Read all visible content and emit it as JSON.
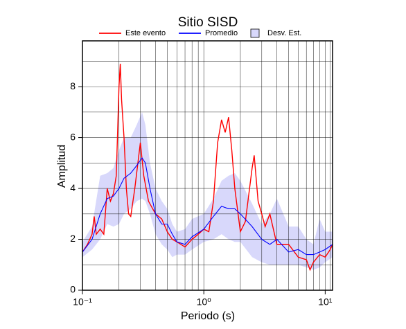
{
  "chart_data": {
    "type": "line",
    "title": "Sitio SISD",
    "x_label": "Periodo (s)",
    "y_label": "Amplitud",
    "log_x": true,
    "grid": true,
    "xlim": [
      0.1,
      11.5
    ],
    "ylim": [
      0,
      9.8
    ],
    "xticks": [
      {
        "value": 0.1,
        "label": "10⁻¹"
      },
      {
        "value": 1,
        "label": "10⁰"
      },
      {
        "value": 10,
        "label": "10¹"
      }
    ],
    "xminor_ticks": [
      0.2,
      0.3,
      0.4,
      0.5,
      0.6,
      0.7,
      0.8,
      0.9,
      2,
      3,
      4,
      5,
      6,
      7,
      8,
      9,
      11
    ],
    "yticks": [
      0,
      2,
      4,
      6,
      8
    ],
    "yminor_ticks": [
      1,
      3,
      5,
      7,
      9
    ],
    "series": [
      {
        "name": "Desv. Est.",
        "type": "band",
        "color": "#d8d8fb",
        "x": [
          0.1,
          0.12,
          0.14,
          0.16,
          0.18,
          0.2,
          0.22,
          0.25,
          0.28,
          0.31,
          0.33,
          0.36,
          0.4,
          0.45,
          0.5,
          0.55,
          0.6,
          0.7,
          0.8,
          1.0,
          1.2,
          1.4,
          1.6,
          1.8,
          2.0,
          2.5,
          3.0,
          3.5,
          4.0,
          5.0,
          6.0,
          7.0,
          8.0,
          9.0,
          10,
          11.5
        ],
        "upper": [
          1.9,
          2.5,
          4.5,
          4.6,
          4.8,
          5.5,
          6.0,
          6.0,
          6.5,
          7.0,
          6.5,
          5.0,
          4.0,
          3.5,
          3.2,
          2.6,
          2.3,
          2.4,
          2.8,
          3.0,
          3.6,
          4.3,
          4.5,
          4.6,
          4.3,
          3.4,
          2.6,
          3.0,
          3.6,
          2.5,
          2.5,
          2.0,
          1.8,
          2.8,
          2.3,
          2.3
        ],
        "lower": [
          1.3,
          1.6,
          2.0,
          2.6,
          2.5,
          2.6,
          3.0,
          3.2,
          3.5,
          3.6,
          3.5,
          3.0,
          2.2,
          1.8,
          1.6,
          1.3,
          1.4,
          1.4,
          1.6,
          1.9,
          2.0,
          2.2,
          2.0,
          1.9,
          1.9,
          1.3,
          1.1,
          1.0,
          1.0,
          1.0,
          1.0,
          0.9,
          0.8,
          0.9,
          1.1,
          1.3
        ]
      },
      {
        "name": "Este evento",
        "color": "#ff0000",
        "x": [
          0.1,
          0.11,
          0.12,
          0.125,
          0.13,
          0.14,
          0.15,
          0.16,
          0.17,
          0.18,
          0.19,
          0.2,
          0.205,
          0.21,
          0.22,
          0.23,
          0.24,
          0.25,
          0.27,
          0.3,
          0.32,
          0.35,
          0.4,
          0.45,
          0.5,
          0.55,
          0.6,
          0.7,
          0.8,
          0.9,
          1.0,
          1.1,
          1.2,
          1.3,
          1.4,
          1.5,
          1.6,
          1.7,
          1.8,
          2.0,
          2.2,
          2.5,
          2.6,
          2.8,
          3.0,
          3.2,
          3.5,
          4.0,
          5.0,
          6.0,
          7.0,
          7.5,
          8.0,
          9.0,
          10,
          11,
          11.5
        ],
        "values": [
          1.5,
          1.8,
          2.2,
          2.9,
          2.2,
          2.4,
          2.2,
          4.0,
          3.5,
          3.8,
          4.5,
          8.0,
          8.9,
          7.5,
          6.0,
          4.0,
          3.0,
          2.9,
          4.0,
          5.8,
          4.5,
          3.5,
          3.0,
          2.8,
          2.3,
          2.0,
          1.9,
          1.7,
          2.0,
          2.2,
          2.4,
          2.3,
          3.5,
          5.8,
          6.7,
          6.2,
          6.8,
          5.5,
          4.0,
          2.3,
          2.7,
          4.8,
          5.3,
          3.5,
          3.0,
          2.5,
          3.0,
          1.8,
          1.8,
          1.3,
          1.2,
          0.8,
          1.1,
          1.4,
          1.3,
          1.6,
          1.8
        ]
      },
      {
        "name": "Promedio",
        "color": "#0000ff",
        "x": [
          0.1,
          0.12,
          0.14,
          0.16,
          0.18,
          0.2,
          0.22,
          0.25,
          0.28,
          0.31,
          0.33,
          0.36,
          0.4,
          0.45,
          0.5,
          0.55,
          0.6,
          0.7,
          0.8,
          1.0,
          1.2,
          1.4,
          1.6,
          1.8,
          2.0,
          2.5,
          3.0,
          3.5,
          4.0,
          5.0,
          6.0,
          7.0,
          8.0,
          9.0,
          10,
          11.5
        ],
        "values": [
          1.5,
          2.0,
          3.0,
          3.6,
          3.7,
          4.0,
          4.4,
          4.6,
          4.9,
          5.2,
          5.0,
          4.0,
          3.0,
          2.6,
          2.6,
          2.2,
          1.9,
          1.8,
          2.1,
          2.4,
          2.9,
          3.3,
          3.2,
          3.2,
          3.0,
          2.5,
          2.0,
          1.8,
          2.0,
          1.5,
          1.6,
          1.4,
          1.4,
          1.5,
          1.6,
          1.8
        ]
      }
    ]
  }
}
